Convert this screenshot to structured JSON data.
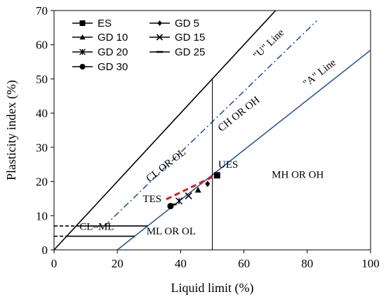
{
  "chart_data": {
    "type": "scatter",
    "xlabel": "Liquid limit (%)",
    "ylabel": "Plasticity  index (%)",
    "xlim": [
      0,
      100
    ],
    "ylim": [
      0,
      70
    ],
    "xticks": [
      "0",
      "20",
      "40",
      "60",
      "80",
      "100"
    ],
    "yticks": [
      "0",
      "10",
      "20",
      "30",
      "40",
      "50",
      "60",
      "70"
    ],
    "grid": false,
    "legend": "top-left",
    "series": [
      {
        "name": "ES",
        "marker": "square",
        "x": [
          51.5
        ],
        "y": [
          21.8
        ]
      },
      {
        "name": "GD 5",
        "marker": "diamond",
        "x": [
          48.5
        ],
        "y": [
          19.3
        ]
      },
      {
        "name": "GD 10",
        "marker": "triangle",
        "x": [
          45.5
        ],
        "y": [
          17.5
        ]
      },
      {
        "name": "GD 15",
        "marker": "x",
        "x": [
          42.5
        ],
        "y": [
          15.8
        ]
      },
      {
        "name": "GD 20",
        "marker": "star",
        "x": [
          39.5
        ],
        "y": [
          14.3
        ]
      },
      {
        "name": "GD 25",
        "marker": "dash",
        "x": [
          37.5
        ],
        "y": [
          13.3
        ]
      },
      {
        "name": "GD 30",
        "marker": "circle",
        "x": [
          36.8
        ],
        "y": [
          12.8
        ]
      }
    ],
    "lines": {
      "u_line_label": "\"U\" Line",
      "a_line_label": "\"A\" Line",
      "a_line": {
        "x": [
          20,
          100
        ],
        "y": [
          0,
          58.4
        ]
      },
      "u_line": {
        "x": [
          16,
          83
        ],
        "y": [
          7,
          67
        ]
      },
      "upper_limit": {
        "x": [
          0,
          70
        ],
        "y": [
          0,
          70
        ]
      },
      "ll50_line": {
        "x": [
          50,
          50
        ],
        "y": [
          0,
          50
        ]
      },
      "cl_ml_top": {
        "x": [
          8,
          29.6
        ],
        "y": [
          7,
          7
        ]
      },
      "cl_ml_bottom": {
        "x": [
          4,
          25.5
        ],
        "y": [
          4,
          4
        ]
      },
      "cl_ml_top_dashed": {
        "x": [
          0,
          8
        ],
        "y": [
          7,
          7
        ]
      },
      "cl_ml_bottom_dashed": {
        "x": [
          0,
          4
        ],
        "y": [
          4,
          4
        ]
      },
      "trend": {
        "x": [
          35.5,
          52
        ],
        "y": [
          14.8,
          22.2
        ],
        "color": "#e0171b"
      }
    },
    "zone_labels": [
      {
        "text": "CH OR OH",
        "x": 59,
        "y": 39
      },
      {
        "text": "CL OR OL",
        "x": 36,
        "y": 24
      },
      {
        "text": "MH OR OH",
        "x": 77,
        "y": 21
      },
      {
        "text": "CL–ML",
        "x": 13.5,
        "y": 5.8
      },
      {
        "text": "ML OR OL",
        "x": 37,
        "y": 4.5
      },
      {
        "text": "TES",
        "x": 31,
        "y": 14
      },
      {
        "text": "UES",
        "x": 55,
        "y": 24
      }
    ],
    "colors": {
      "a_line": "#2f5597",
      "u_line": "#2f5597",
      "trend": "#e0171b",
      "black": "#000000"
    }
  }
}
